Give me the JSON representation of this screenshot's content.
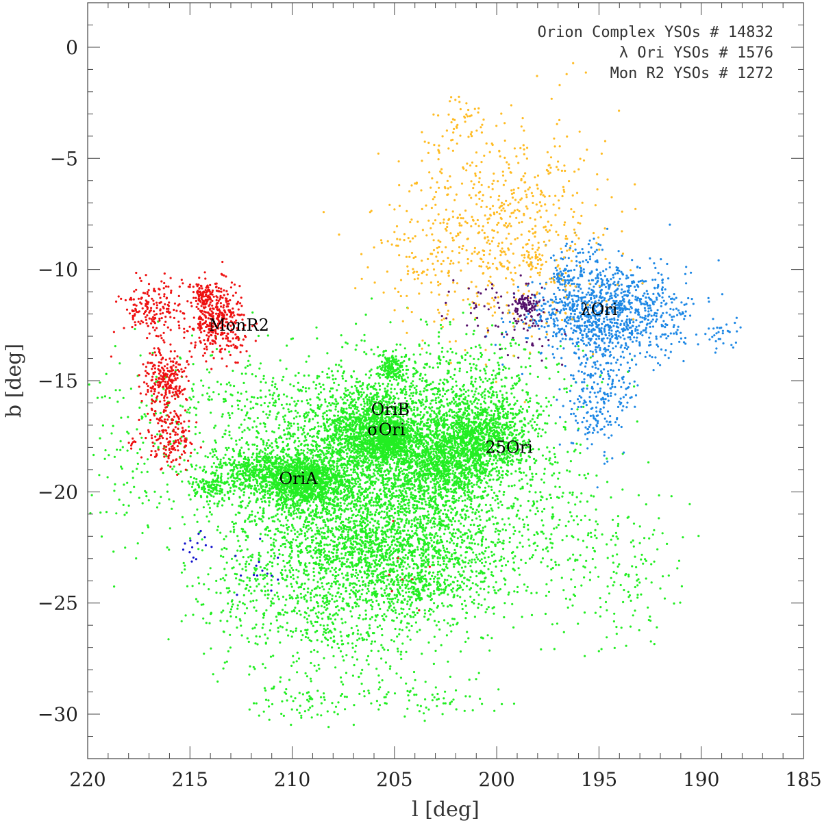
{
  "chart_data": {
    "type": "scatter",
    "title": "",
    "xlabel": "l [deg]",
    "ylabel": "b [deg]",
    "xlim": [
      220,
      185
    ],
    "ylim": [
      -32,
      2
    ],
    "x_ticks": [
      220,
      215,
      210,
      205,
      200,
      195,
      190,
      185
    ],
    "y_ticks": [
      0,
      -5,
      -10,
      -15,
      -20,
      -25,
      -30
    ],
    "grid": false,
    "legend_position": "top-right",
    "legend_lines": [
      "Orion Complex YSOs # 14832",
      "λ Ori YSOs #  1576",
      "Mon R2 YSOs #  1272"
    ],
    "colors": {
      "orion_complex": "#22ee22",
      "lambda_ori": "#1e88e5",
      "mon_r2": "#ee1111",
      "orange_group": "#ffbb22",
      "purple_group": "#55116a",
      "blue_group": "#1111cc"
    },
    "annotations": [
      {
        "text": "MonR2",
        "l": 212.6,
        "b": -12.5
      },
      {
        "text": "λOri",
        "l": 195.0,
        "b": -11.8
      },
      {
        "text": "OriB",
        "l": 205.2,
        "b": -16.3
      },
      {
        "text": "σOri",
        "l": 205.4,
        "b": -17.2
      },
      {
        "text": "25Ori",
        "l": 199.4,
        "b": -18.0
      },
      {
        "text": "OriA",
        "l": 209.7,
        "b": -19.4
      }
    ],
    "series": [
      {
        "name": "Orion Complex YSOs",
        "color": "#22ee22",
        "count": 14832,
        "clumps": [
          {
            "l": 209.5,
            "b": -19.5,
            "sl": 1.1,
            "sb": 0.6,
            "n": 1300
          },
          {
            "l": 206.0,
            "b": -17.3,
            "sl": 1.3,
            "sb": 1.0,
            "n": 1400
          },
          {
            "l": 205.2,
            "b": -17.6,
            "sl": 0.5,
            "sb": 0.4,
            "n": 500
          },
          {
            "l": 201.0,
            "b": -17.6,
            "sl": 1.4,
            "sb": 0.9,
            "n": 1200
          },
          {
            "l": 202.8,
            "b": -18.8,
            "sl": 1.3,
            "sb": 0.8,
            "n": 800
          },
          {
            "l": 205.1,
            "b": -14.4,
            "sl": 0.35,
            "sb": 0.3,
            "n": 150
          },
          {
            "l": 212.0,
            "b": -19.0,
            "sl": 0.9,
            "sb": 0.5,
            "n": 350
          },
          {
            "l": 214.0,
            "b": -19.8,
            "sl": 0.5,
            "sb": 0.3,
            "n": 120
          },
          {
            "l": 206.2,
            "b": -20.5,
            "sl": 3.0,
            "sb": 2.0,
            "n": 2000
          },
          {
            "l": 205.0,
            "b": -22.8,
            "sl": 3.2,
            "sb": 1.6,
            "n": 1400
          },
          {
            "l": 208.0,
            "b": -25.5,
            "sl": 3.0,
            "sb": 1.5,
            "n": 500
          },
          {
            "l": 203.8,
            "b": -24.4,
            "sl": 0.7,
            "sb": 0.4,
            "n": 120
          },
          {
            "l": 202.5,
            "b": -15.6,
            "sl": 3.0,
            "sb": 1.3,
            "n": 700
          },
          {
            "l": 210.5,
            "b": -16.5,
            "sl": 2.6,
            "sb": 1.5,
            "n": 450
          },
          {
            "l": 197.5,
            "b": -21.0,
            "sl": 2.0,
            "sb": 2.2,
            "n": 250
          },
          {
            "l": 193.5,
            "b": -24.0,
            "sl": 1.4,
            "sb": 1.5,
            "n": 120
          },
          {
            "l": 217.0,
            "b": -18.0,
            "sl": 1.8,
            "sb": 2.2,
            "n": 180
          },
          {
            "l": 203.5,
            "b": -29.2,
            "sl": 1.6,
            "sb": 0.5,
            "n": 70
          },
          {
            "l": 209.5,
            "b": -29.4,
            "sl": 1.3,
            "sb": 0.5,
            "n": 70
          },
          {
            "l": 212.5,
            "b": -23.5,
            "sl": 1.5,
            "sb": 1.8,
            "n": 120
          }
        ]
      },
      {
        "name": "λ Ori YSOs",
        "color": "#1e88e5",
        "count": 1576,
        "clumps": [
          {
            "l": 194.9,
            "b": -11.9,
            "sl": 1.7,
            "sb": 1.1,
            "n": 900
          },
          {
            "l": 195.0,
            "b": -15.5,
            "sl": 0.8,
            "sb": 1.4,
            "n": 250
          },
          {
            "l": 196.8,
            "b": -10.3,
            "sl": 0.3,
            "sb": 0.2,
            "n": 40
          },
          {
            "l": 192.5,
            "b": -12.0,
            "sl": 1.2,
            "sb": 1.0,
            "n": 150
          },
          {
            "l": 189.0,
            "b": -12.8,
            "sl": 0.5,
            "sb": 0.3,
            "n": 30
          },
          {
            "l": 195.8,
            "b": -9.5,
            "sl": 0.6,
            "sb": 0.6,
            "n": 40
          }
        ]
      },
      {
        "name": "Mon R2 YSOs",
        "color": "#ee1111",
        "count": 1272,
        "clumps": [
          {
            "l": 213.7,
            "b": -12.3,
            "sl": 0.7,
            "sb": 0.8,
            "n": 380
          },
          {
            "l": 214.3,
            "b": -11.2,
            "sl": 0.3,
            "sb": 0.3,
            "n": 80
          },
          {
            "l": 216.8,
            "b": -11.8,
            "sl": 0.8,
            "sb": 0.7,
            "n": 180
          },
          {
            "l": 216.2,
            "b": -15.1,
            "sl": 0.5,
            "sb": 0.7,
            "n": 260
          },
          {
            "l": 216.0,
            "b": -17.6,
            "sl": 0.6,
            "sb": 0.6,
            "n": 150
          },
          {
            "l": 217.8,
            "b": -17.8,
            "sl": 0.1,
            "sb": 0.1,
            "n": 8
          },
          {
            "l": 205.0,
            "b": -23.5,
            "sl": 0.8,
            "sb": 1.2,
            "n": 8
          }
        ]
      },
      {
        "name": "",
        "color": "#ffbb22",
        "clumps": [
          {
            "l": 199.5,
            "b": -8.0,
            "sl": 2.6,
            "sb": 2.4,
            "n": 600
          },
          {
            "l": 203.5,
            "b": -9.5,
            "sl": 2.0,
            "sb": 1.2,
            "n": 100
          },
          {
            "l": 201.8,
            "b": -3.5,
            "sl": 0.7,
            "sb": 0.8,
            "n": 40
          },
          {
            "l": 198.3,
            "b": -9.7,
            "sl": 0.3,
            "sb": 0.3,
            "n": 30
          }
        ]
      },
      {
        "name": "",
        "color": "#55116a",
        "clumps": [
          {
            "l": 198.6,
            "b": -11.6,
            "sl": 0.3,
            "sb": 0.25,
            "n": 90
          },
          {
            "l": 198.9,
            "b": -12.5,
            "sl": 1.0,
            "sb": 0.9,
            "n": 60
          },
          {
            "l": 201.3,
            "b": -11.6,
            "sl": 0.6,
            "sb": 0.6,
            "n": 15
          }
        ]
      },
      {
        "name": "",
        "color": "#1111cc",
        "clumps": [
          {
            "l": 214.6,
            "b": -22.3,
            "sl": 0.4,
            "sb": 0.4,
            "n": 14
          },
          {
            "l": 211.8,
            "b": -23.8,
            "sl": 0.8,
            "sb": 0.6,
            "n": 14
          }
        ]
      }
    ]
  }
}
